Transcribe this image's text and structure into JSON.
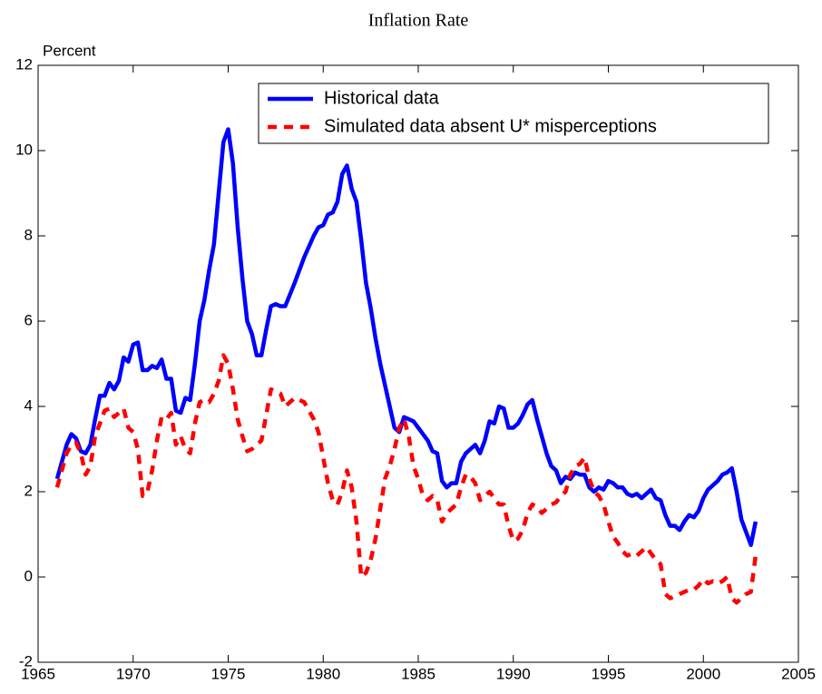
{
  "chart_data": {
    "type": "line",
    "title": "Inflation Rate",
    "ylabel": "Percent",
    "x": [
      1966,
      1966.5,
      1966.75,
      1967,
      1967.25,
      1967.5,
      1967.75,
      1968,
      1968.25,
      1968.5,
      1968.75,
      1969,
      1969.25,
      1969.5,
      1969.75,
      1970,
      1970.25,
      1970.5,
      1970.75,
      1971,
      1971.25,
      1971.5,
      1971.75,
      1972,
      1972.25,
      1972.5,
      1972.75,
      1973,
      1973.25,
      1973.5,
      1973.75,
      1974,
      1974.25,
      1974.5,
      1974.75,
      1975,
      1975.25,
      1975.5,
      1975.75,
      1976,
      1976.25,
      1976.5,
      1976.75,
      1977,
      1977.25,
      1977.5,
      1977.75,
      1978,
      1978.5,
      1979,
      1979.5,
      1979.75,
      1980,
      1980.25,
      1980.5,
      1980.75,
      1981,
      1981.25,
      1981.5,
      1981.75,
      1982,
      1982.25,
      1982.5,
      1982.75,
      1983,
      1983.25,
      1983.5,
      1983.75,
      1984,
      1984.25,
      1984.5,
      1984.75,
      1985,
      1985.25,
      1985.5,
      1985.75,
      1986,
      1986.25,
      1986.5,
      1986.75,
      1987,
      1987.25,
      1987.5,
      1987.75,
      1988,
      1988.25,
      1988.5,
      1988.75,
      1989,
      1989.25,
      1989.5,
      1989.75,
      1990,
      1990.25,
      1990.5,
      1990.75,
      1991,
      1991.25,
      1991.5,
      1991.75,
      1992,
      1992.25,
      1992.5,
      1992.75,
      1993,
      1993.25,
      1993.5,
      1993.75,
      1994,
      1994.25,
      1994.5,
      1994.75,
      1995,
      1995.25,
      1995.5,
      1995.75,
      1996,
      1996.25,
      1996.5,
      1996.75,
      1997,
      1997.25,
      1997.5,
      1997.75,
      1998,
      1998.25,
      1998.5,
      1998.75,
      1999,
      1999.25,
      1999.5,
      1999.75,
      2000,
      2000.25,
      2000.5,
      2000.75,
      2001,
      2001.25,
      2001.5,
      2001.75,
      2002,
      2002.25,
      2002.5,
      2002.75
    ],
    "series": [
      {
        "name": "Historical data",
        "color": "#0000ff",
        "dash": "solid",
        "values": [
          2.3,
          3.1,
          3.35,
          3.25,
          2.95,
          2.9,
          3.1,
          3.7,
          4.25,
          4.25,
          4.55,
          4.4,
          4.6,
          5.15,
          5.05,
          5.45,
          5.5,
          4.85,
          4.85,
          4.95,
          4.9,
          5.1,
          4.65,
          4.65,
          3.9,
          3.85,
          4.2,
          4.15,
          5.0,
          6.0,
          6.5,
          7.2,
          7.8,
          9.0,
          10.2,
          10.5,
          9.7,
          8.2,
          7.0,
          6.0,
          5.7,
          5.2,
          5.2,
          5.8,
          6.35,
          6.4,
          6.35,
          6.35,
          6.9,
          7.5,
          8.0,
          8.2,
          8.25,
          8.5,
          8.55,
          8.8,
          9.45,
          9.65,
          9.1,
          8.8,
          7.9,
          6.9,
          6.3,
          5.6,
          5.0,
          4.5,
          4.0,
          3.5,
          3.4,
          3.75,
          3.7,
          3.65,
          3.5,
          3.35,
          3.2,
          2.95,
          2.9,
          2.25,
          2.1,
          2.2,
          2.2,
          2.7,
          2.9,
          3.0,
          3.1,
          2.9,
          3.2,
          3.65,
          3.6,
          4.0,
          3.95,
          3.5,
          3.5,
          3.6,
          3.8,
          4.05,
          4.15,
          3.7,
          3.3,
          2.9,
          2.6,
          2.5,
          2.2,
          2.35,
          2.3,
          2.45,
          2.4,
          2.4,
          2.1,
          2.0,
          2.1,
          2.05,
          2.25,
          2.2,
          2.1,
          2.1,
          1.95,
          1.9,
          1.95,
          1.85,
          1.95,
          2.05,
          1.85,
          1.8,
          1.45,
          1.2,
          1.2,
          1.1,
          1.3,
          1.45,
          1.4,
          1.55,
          1.85,
          2.05,
          2.15,
          2.25,
          2.4,
          2.45,
          2.55,
          2.0,
          1.35,
          1.05,
          0.75,
          1.3
        ]
      },
      {
        "name": "Simulated data absent U* misperceptions",
        "color": "#ff0000",
        "dash": "dashed",
        "values": [
          2.1,
          2.9,
          3.1,
          3.15,
          2.9,
          2.4,
          2.6,
          3.3,
          3.6,
          3.9,
          3.95,
          3.75,
          3.85,
          3.95,
          3.5,
          3.4,
          3.0,
          1.9,
          2.0,
          2.5,
          3.2,
          3.75,
          3.7,
          3.85,
          3.1,
          3.3,
          3.0,
          2.9,
          3.6,
          4.1,
          4.15,
          4.1,
          4.3,
          4.6,
          5.2,
          5.0,
          4.4,
          3.7,
          3.3,
          2.95,
          3.0,
          3.1,
          3.2,
          3.8,
          4.4,
          4.35,
          4.3,
          4.0,
          4.2,
          4.1,
          3.7,
          3.4,
          2.8,
          2.2,
          1.8,
          1.7,
          2.0,
          2.5,
          2.1,
          1.3,
          0.0,
          0.1,
          0.4,
          0.9,
          1.6,
          2.3,
          2.6,
          3.0,
          3.5,
          3.7,
          3.3,
          2.6,
          2.3,
          1.9,
          1.8,
          1.9,
          1.8,
          1.3,
          1.5,
          1.6,
          1.7,
          2.1,
          2.4,
          2.35,
          2.2,
          1.8,
          1.9,
          2.0,
          1.85,
          1.7,
          1.7,
          1.2,
          0.85,
          0.9,
          1.1,
          1.5,
          1.7,
          1.65,
          1.5,
          1.6,
          1.7,
          1.75,
          1.9,
          2.0,
          2.4,
          2.6,
          2.65,
          2.8,
          2.3,
          2.0,
          1.9,
          1.7,
          1.3,
          0.95,
          0.8,
          0.6,
          0.5,
          0.55,
          0.5,
          0.6,
          0.7,
          0.55,
          0.4,
          0.3,
          -0.4,
          -0.5,
          -0.45,
          -0.4,
          -0.35,
          -0.3,
          -0.3,
          -0.2,
          -0.05,
          -0.15,
          -0.1,
          -0.15,
          -0.1,
          0.0,
          -0.5,
          -0.6,
          -0.5,
          -0.4,
          -0.35,
          0.5
        ]
      }
    ],
    "xlim": [
      1965,
      2005
    ],
    "xticks": [
      1965,
      1970,
      1975,
      1980,
      1985,
      1990,
      1995,
      2000,
      2005
    ],
    "ylim": [
      -2,
      12
    ],
    "yticks": [
      -2,
      0,
      2,
      4,
      6,
      8,
      10,
      12
    ],
    "grid": false,
    "legend": "upper right"
  }
}
